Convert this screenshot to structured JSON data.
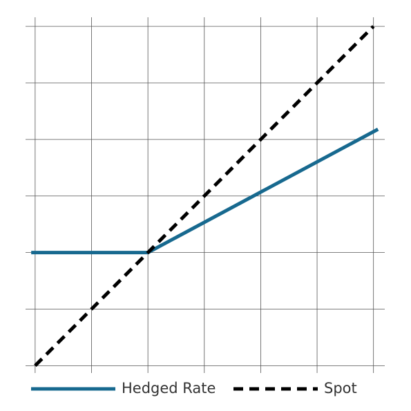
{
  "chart_data": {
    "type": "line",
    "series": [
      {
        "name": "Hedged Rate",
        "color": "#17698f",
        "dash": false,
        "x": [
          -0.07,
          2,
          6.08
        ],
        "values": [
          2,
          2,
          4.18
        ]
      },
      {
        "name": "Spot",
        "color": "#000000",
        "dash": true,
        "x": [
          0,
          6
        ],
        "values": [
          0,
          6
        ]
      }
    ],
    "xlim": [
      -0.17,
      6.2
    ],
    "ylim": [
      -0.13,
      6.16
    ],
    "xticks": [
      0,
      1,
      2,
      3,
      4,
      5,
      6
    ],
    "yticks": [
      0,
      1,
      2,
      3,
      4,
      5,
      6
    ],
    "grid": true,
    "legend": "bottom"
  }
}
